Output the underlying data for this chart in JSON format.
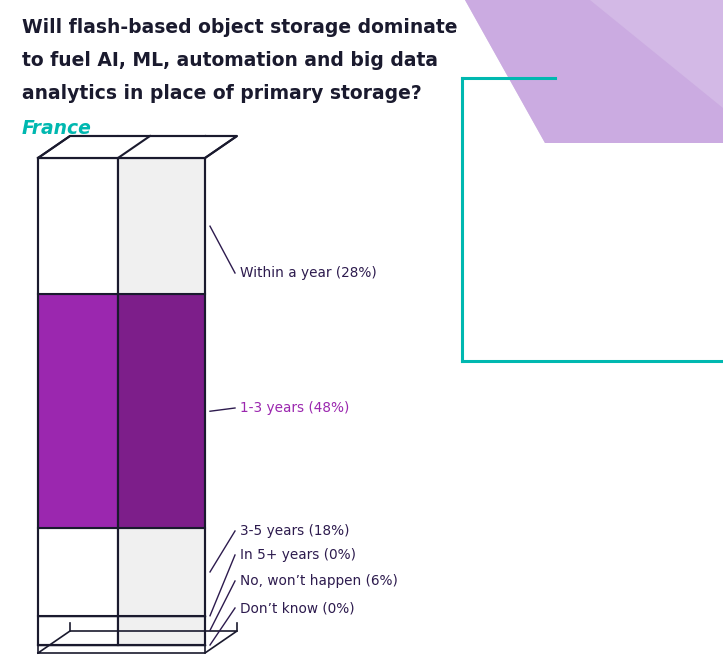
{
  "title_line1": "Will flash-based object storage dominate",
  "title_line2": "to fuel AI, ML, automation and big data",
  "title_line3": "analytics in place of primary storage?",
  "subtitle": "France",
  "categories": [
    "Within a year",
    "1-3 years",
    "3-5 years",
    "In 5+ years",
    "No, won’t happen",
    "Don’t know"
  ],
  "values": [
    28,
    48,
    18,
    0,
    6,
    0
  ],
  "colors_front": [
    "#ffffff",
    "#9b27af",
    "#ffffff",
    "#ffffff",
    "#ffffff",
    "#ffffff"
  ],
  "colors_side": [
    "#f0f0f0",
    "#7d1e8a",
    "#f0f0f0",
    "#f0f0f0",
    "#f0f0f0",
    "#f0f0f0"
  ],
  "label_colors": [
    "#2d1b4e",
    "#9b27af",
    "#2d1b4e",
    "#2d1b4e",
    "#2d1b4e",
    "#2d1b4e"
  ],
  "bar_outline_color": "#1a1a2e",
  "france_color": "#00b8b0",
  "bg_color": "#ffffff",
  "decoration_box_color": "#00b8b0",
  "decoration_fill_color": "#c9a8e0",
  "title_color": "#1a1a2e",
  "label_anchor_mode": "mid_boundary"
}
